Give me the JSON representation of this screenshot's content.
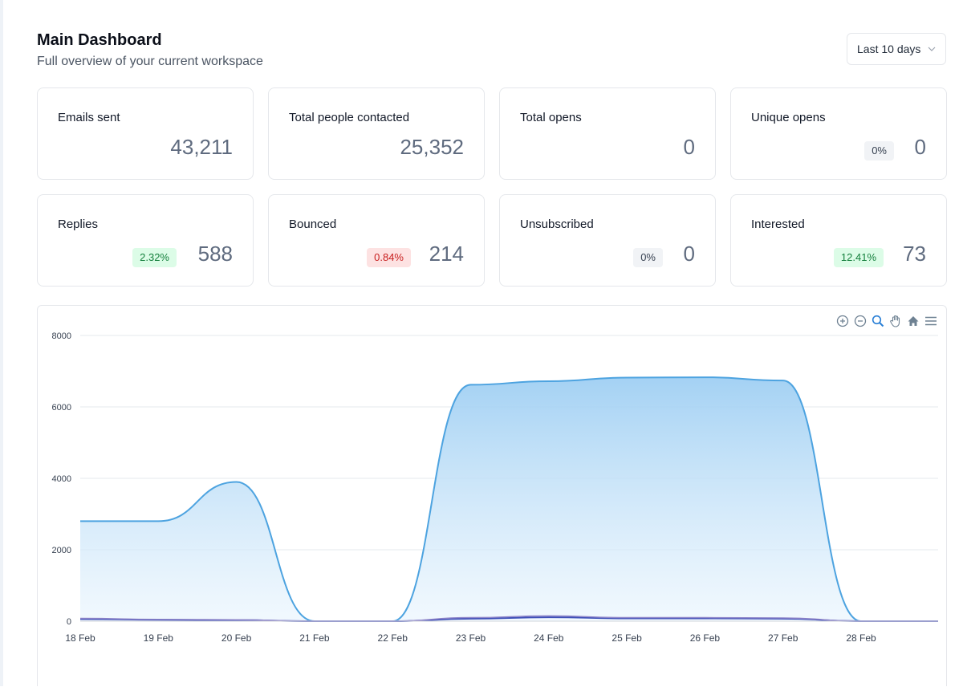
{
  "header": {
    "title": "Main Dashboard",
    "subtitle": "Full overview of your current workspace"
  },
  "range_select": {
    "value": "Last 10 days"
  },
  "stats": [
    {
      "label": "Emails sent",
      "value": "43,211"
    },
    {
      "label": "Total people contacted",
      "value": "25,352"
    },
    {
      "label": "Total opens",
      "value": "0"
    },
    {
      "label": "Unique opens",
      "badge": "0%",
      "badge_color": "gray",
      "value": "0"
    },
    {
      "label": "Replies",
      "badge": "2.32%",
      "badge_color": "green",
      "value": "588"
    },
    {
      "label": "Bounced",
      "badge": "0.84%",
      "badge_color": "red",
      "value": "214"
    },
    {
      "label": "Unsubscribed",
      "badge": "0%",
      "badge_color": "gray",
      "value": "0"
    },
    {
      "label": "Interested",
      "badge": "12.41%",
      "badge_color": "green",
      "value": "73"
    }
  ],
  "chart_toolbar": [
    "zoom-in-icon",
    "zoom-out-icon",
    "zoom-selection-icon",
    "pan-hand-icon",
    "home-reset-icon",
    "menu-icon"
  ],
  "colors": {
    "accent_line": "#4da3e0",
    "accent_fill": "#9fcff3",
    "secondary_line": "#3d4fb8",
    "secondary_line_2": "#8d84c9",
    "toolbar_active": "#2a7fd6",
    "toolbar_idle": "#6e8192"
  },
  "chart_data": {
    "type": "area",
    "title": "",
    "xlabel": "",
    "ylabel": "",
    "x": [
      "18 Feb",
      "19 Feb",
      "20 Feb",
      "21 Feb",
      "22 Feb",
      "23 Feb",
      "24 Feb",
      "25 Feb",
      "26 Feb",
      "27 Feb",
      "28 Feb"
    ],
    "ylim": [
      0,
      8000
    ],
    "yticks": [
      "0",
      "2000",
      "4000",
      "6000",
      "8000"
    ],
    "grid": true,
    "series": [
      {
        "values": [
          2800,
          2800,
          3900,
          0,
          0,
          6620,
          6720,
          6820,
          6830,
          6740,
          0
        ]
      },
      {
        "values": [
          60,
          40,
          30,
          0,
          0,
          70,
          110,
          80,
          80,
          70,
          0
        ]
      },
      {
        "values": [
          80,
          50,
          40,
          0,
          0,
          100,
          150,
          100,
          100,
          90,
          0
        ]
      }
    ]
  }
}
